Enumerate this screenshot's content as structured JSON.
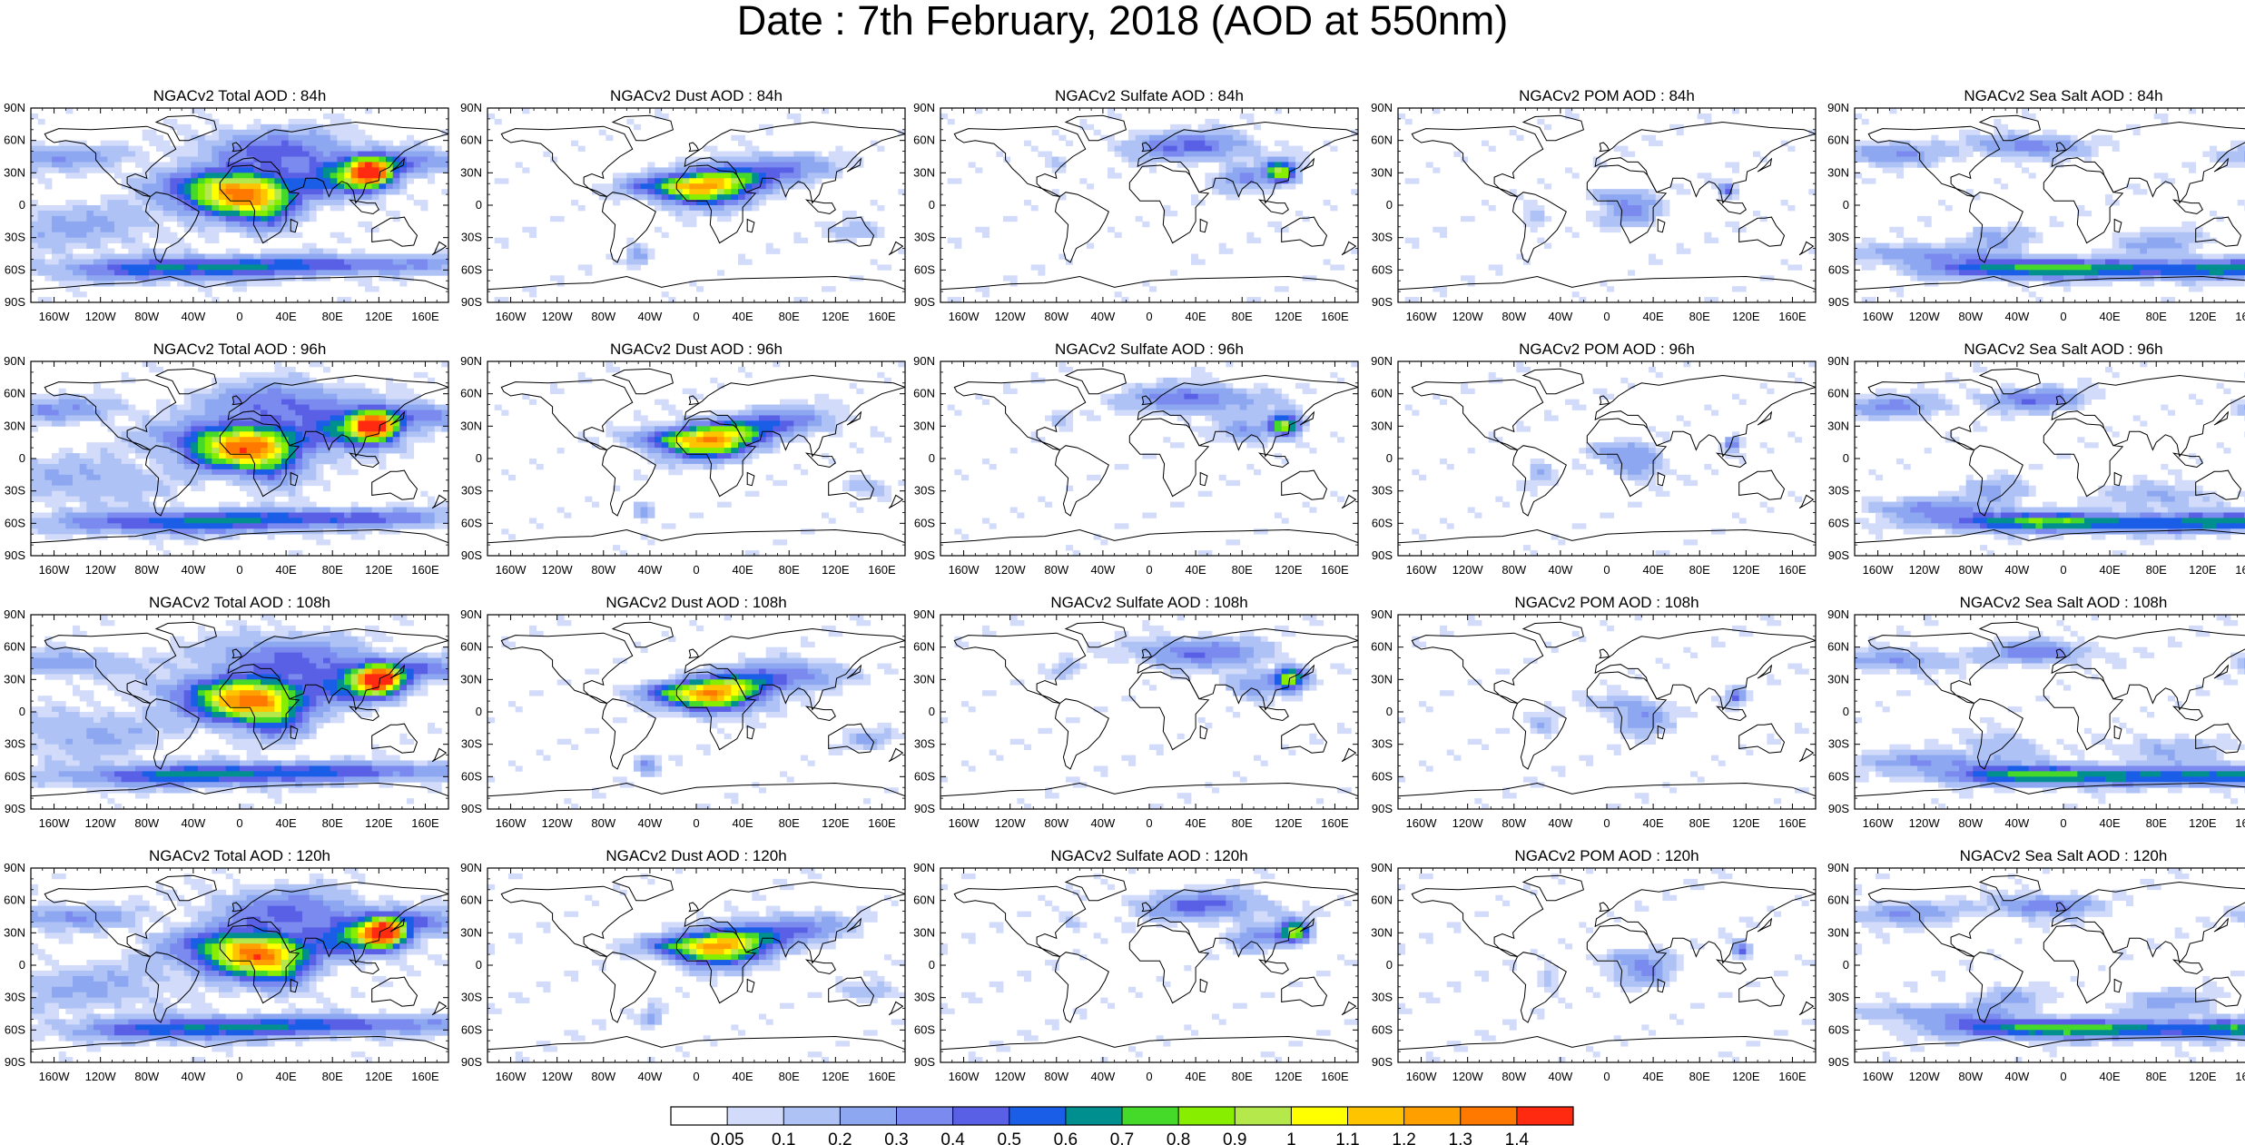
{
  "title": "Date : 7th February, 2018 (AOD at 550nm)",
  "panels": [
    {
      "title": "NGACv2 Total AOD : 84h",
      "field": "total"
    },
    {
      "title": "NGACv2 Dust AOD : 84h",
      "field": "dust"
    },
    {
      "title": "NGACv2 Sulfate AOD : 84h",
      "field": "sulfate"
    },
    {
      "title": "NGACv2 POM AOD : 84h",
      "field": "pom"
    },
    {
      "title": "NGACv2 Sea Salt AOD : 84h",
      "field": "seasalt"
    },
    {
      "title": "NGACv2 Total AOD : 96h",
      "field": "total"
    },
    {
      "title": "NGACv2 Dust AOD : 96h",
      "field": "dust"
    },
    {
      "title": "NGACv2 Sulfate AOD : 96h",
      "field": "sulfate"
    },
    {
      "title": "NGACv2 POM AOD : 96h",
      "field": "pom"
    },
    {
      "title": "NGACv2 Sea Salt AOD : 96h",
      "field": "seasalt"
    },
    {
      "title": "NGACv2 Total AOD : 108h",
      "field": "total"
    },
    {
      "title": "NGACv2 Dust AOD : 108h",
      "field": "dust"
    },
    {
      "title": "NGACv2 Sulfate AOD : 108h",
      "field": "sulfate"
    },
    {
      "title": "NGACv2 POM AOD : 108h",
      "field": "pom"
    },
    {
      "title": "NGACv2 Sea Salt AOD : 108h",
      "field": "seasalt"
    },
    {
      "title": "NGACv2 Total AOD : 120h",
      "field": "total"
    },
    {
      "title": "NGACv2 Dust AOD : 120h",
      "field": "dust"
    },
    {
      "title": "NGACv2 Sulfate AOD : 120h",
      "field": "sulfate"
    },
    {
      "title": "NGACv2 POM AOD : 120h",
      "field": "pom"
    },
    {
      "title": "NGACv2 Sea Salt  AOD : 120h",
      "field": "seasalt"
    }
  ],
  "lat_labels": [
    "90N",
    "60N",
    "30N",
    "0",
    "30S",
    "60S",
    "90S"
  ],
  "lon_labels": [
    "160W",
    "120W",
    "80W",
    "40W",
    "0",
    "40E",
    "80E",
    "120E",
    "160E"
  ],
  "colorbar": {
    "colors": [
      "#ffffff",
      "#d2dcfa",
      "#aec2f5",
      "#8ea7f1",
      "#7a8aee",
      "#5a60e6",
      "#1a5ee8",
      "#008f8f",
      "#45d92a",
      "#88ee00",
      "#b5e84a",
      "#ffff00",
      "#ffc400",
      "#ffa000",
      "#ff7800",
      "#ff2a10"
    ],
    "labels": [
      "0.05",
      "0.1",
      "0.2",
      "0.3",
      "0.4",
      "0.5",
      "0.6",
      "0.7",
      "0.8",
      "0.9",
      "1",
      "1.1",
      "1.2",
      "1.3",
      "1.4"
    ]
  },
  "chart_data": {
    "type": "heatmap",
    "variable": "AOD at 550nm",
    "x_range": [
      -180,
      180
    ],
    "y_range": [
      -90,
      90
    ],
    "levels": [
      0.05,
      0.1,
      0.2,
      0.3,
      0.4,
      0.5,
      0.6,
      0.7,
      0.8,
      0.9,
      1,
      1.1,
      1.2,
      1.3,
      1.4
    ],
    "approximate_maxima": [
      {
        "field": "total",
        "region": "West Africa",
        "lon": 5,
        "lat": 12,
        "aod": 1.0
      },
      {
        "field": "total",
        "region": "East China",
        "lon": 113,
        "lat": 30,
        "aod": 1.3
      },
      {
        "field": "dust",
        "region": "West Africa",
        "lon": 5,
        "lat": 12,
        "aod": 1.0
      },
      {
        "field": "sulfate",
        "region": "East China",
        "lon": 113,
        "lat": 30,
        "aod": 0.9
      },
      {
        "field": "pom",
        "region": "Central Africa",
        "lon": 20,
        "lat": -5,
        "aod": 0.3
      },
      {
        "field": "seasalt",
        "region": "Southern Ocean",
        "lon": -60,
        "lat": -60,
        "aod": 0.5
      }
    ]
  }
}
